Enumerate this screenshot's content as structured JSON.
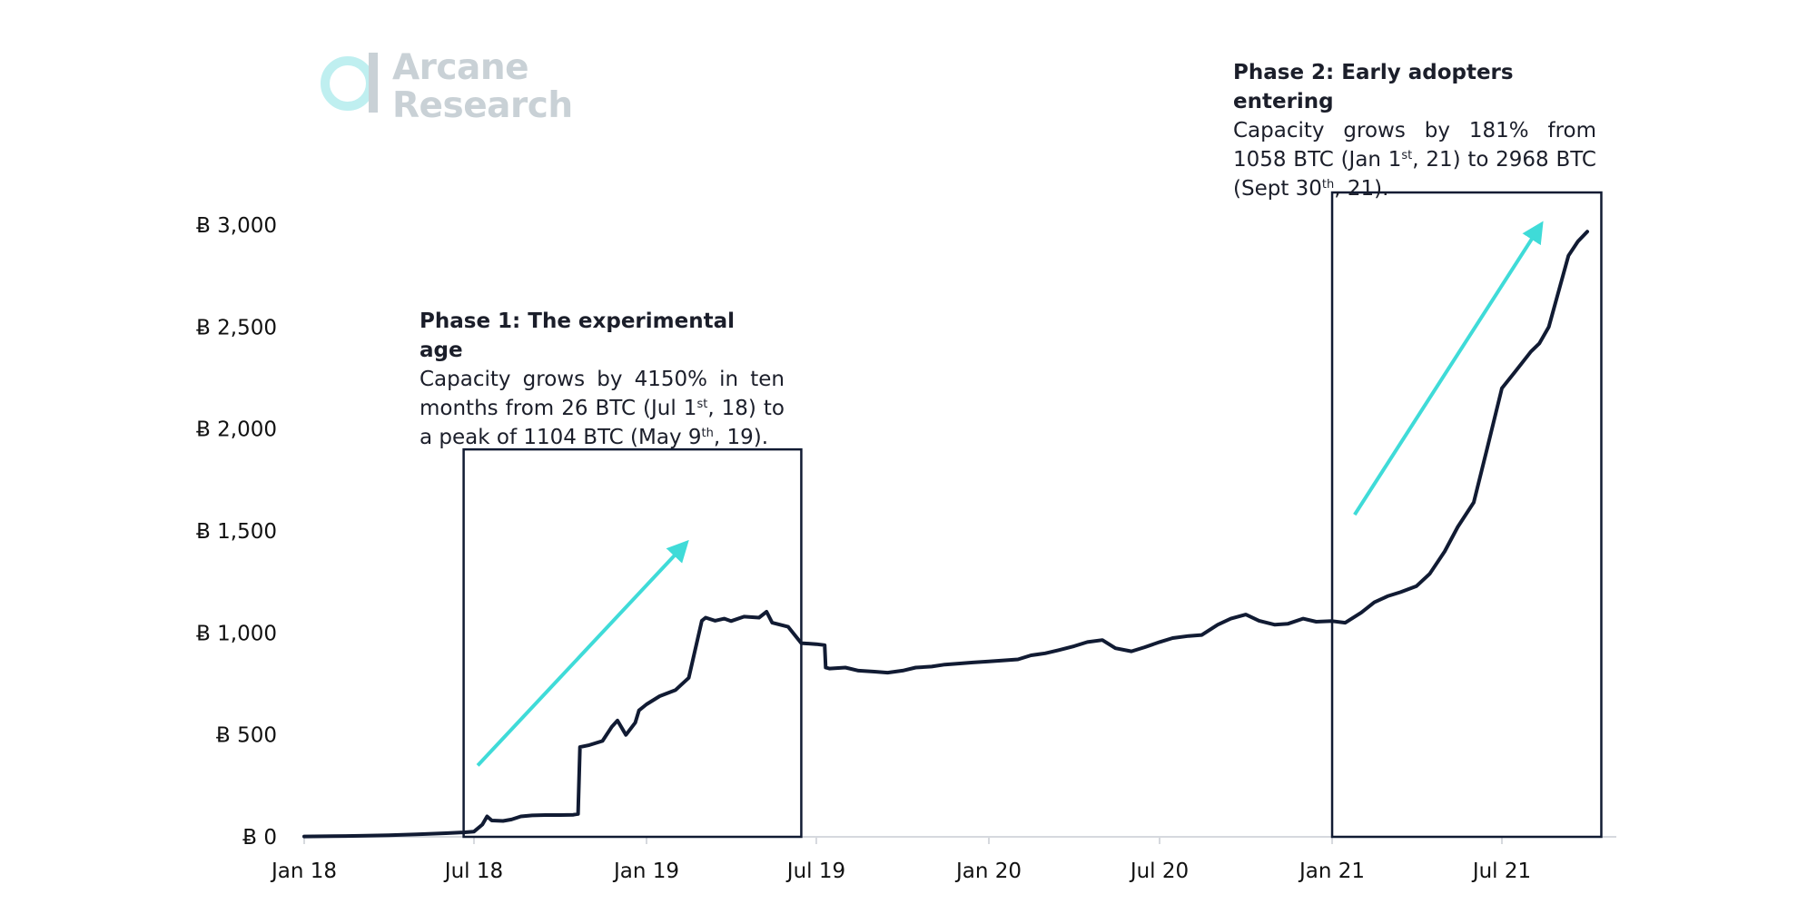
{
  "logo": {
    "line1": "Arcane",
    "line2": "Research"
  },
  "chart_data": {
    "type": "line",
    "title": "",
    "xlabel": "",
    "ylabel": "",
    "ylim": [
      0,
      3000
    ],
    "xlim": [
      "2018-01-01",
      "2021-10-31"
    ],
    "y_ticks": [
      0,
      500,
      1000,
      1500,
      2000,
      2500,
      3000
    ],
    "y_tick_labels": [
      "Ƀ 0",
      "Ƀ 500",
      "Ƀ 1,000",
      "Ƀ 1,500",
      "Ƀ 2,000",
      "Ƀ 2,500",
      "Ƀ 3,000"
    ],
    "x_ticks": [
      "2018-01-01",
      "2018-07-01",
      "2019-01-01",
      "2019-07-01",
      "2020-01-01",
      "2020-07-01",
      "2021-01-01",
      "2021-07-01"
    ],
    "x_tick_labels": [
      "Jan 18",
      "Jul 18",
      "Jan 19",
      "Jul 19",
      "Jan 20",
      "Jul 20",
      "Jan 21",
      "Jul 21"
    ],
    "grid": false,
    "line_color": "#111b33",
    "series": [
      {
        "name": "",
        "x": [
          "2018-01-01",
          "2018-02-01",
          "2018-03-01",
          "2018-04-01",
          "2018-05-01",
          "2018-06-01",
          "2018-06-20",
          "2018-07-01",
          "2018-07-10",
          "2018-07-15",
          "2018-07-20",
          "2018-08-01",
          "2018-08-10",
          "2018-08-20",
          "2018-09-01",
          "2018-09-15",
          "2018-10-01",
          "2018-10-15",
          "2018-10-20",
          "2018-10-22",
          "2018-11-01",
          "2018-11-15",
          "2018-11-25",
          "2018-12-01",
          "2018-12-10",
          "2018-12-20",
          "2018-12-24",
          "2019-01-01",
          "2019-01-15",
          "2019-02-01",
          "2019-02-15",
          "2019-03-01",
          "2019-03-05",
          "2019-03-15",
          "2019-03-25",
          "2019-04-01",
          "2019-04-15",
          "2019-05-01",
          "2019-05-09",
          "2019-05-15",
          "2019-06-01",
          "2019-06-15",
          "2019-07-01",
          "2019-07-10",
          "2019-07-11",
          "2019-07-15",
          "2019-08-01",
          "2019-08-15",
          "2019-09-01",
          "2019-09-15",
          "2019-10-01",
          "2019-10-15",
          "2019-11-01",
          "2019-11-15",
          "2019-12-01",
          "2019-12-15",
          "2020-01-01",
          "2020-01-15",
          "2020-02-01",
          "2020-02-15",
          "2020-03-01",
          "2020-03-15",
          "2020-04-01",
          "2020-04-15",
          "2020-05-01",
          "2020-05-15",
          "2020-06-01",
          "2020-06-15",
          "2020-07-01",
          "2020-07-15",
          "2020-08-01",
          "2020-08-15",
          "2020-09-01",
          "2020-09-15",
          "2020-10-01",
          "2020-10-15",
          "2020-11-01",
          "2020-11-15",
          "2020-12-01",
          "2020-12-15",
          "2021-01-01",
          "2021-01-15",
          "2021-02-01",
          "2021-02-15",
          "2021-03-01",
          "2021-03-15",
          "2021-04-01",
          "2021-04-15",
          "2021-05-01",
          "2021-05-15",
          "2021-06-01",
          "2021-06-15",
          "2021-07-01",
          "2021-07-15",
          "2021-08-01",
          "2021-08-10",
          "2021-08-20",
          "2021-09-01",
          "2021-09-10",
          "2021-09-20",
          "2021-09-30"
        ],
        "y": [
          2,
          3,
          5,
          8,
          12,
          18,
          22,
          26,
          60,
          100,
          80,
          78,
          85,
          100,
          105,
          107,
          107,
          108,
          112,
          440,
          450,
          470,
          540,
          570,
          500,
          560,
          620,
          650,
          690,
          720,
          780,
          1060,
          1075,
          1060,
          1070,
          1058,
          1080,
          1075,
          1104,
          1050,
          1030,
          950,
          945,
          940,
          830,
          825,
          830,
          815,
          810,
          805,
          815,
          830,
          835,
          845,
          850,
          855,
          860,
          865,
          870,
          890,
          900,
          915,
          935,
          955,
          965,
          925,
          910,
          930,
          955,
          975,
          985,
          990,
          1040,
          1070,
          1090,
          1060,
          1040,
          1045,
          1070,
          1055,
          1058,
          1050,
          1100,
          1150,
          1180,
          1200,
          1230,
          1290,
          1400,
          1520,
          1640,
          1900,
          2200,
          2280,
          2380,
          2420,
          2500,
          2700,
          2850,
          2920,
          2968
        ]
      }
    ],
    "annotations": [
      {
        "title": "Phase 1: The experimental age",
        "text": [
          {
            "t": "Capacity grows by 4150% in ten months from 26 BTC (Jul 1"
          },
          {
            "t": "st",
            "sup": true
          },
          {
            "t": ", 18) to a peak of 1104 BTC (May 9"
          },
          {
            "t": "th",
            "sup": true
          },
          {
            "t": ", 19)."
          }
        ],
        "box_x": [
          "2018-06-20",
          "2019-06-15"
        ],
        "box_y": [
          0,
          1900
        ],
        "arrow_from": [
          "2018-07-05",
          350
        ],
        "arrow_to": [
          "2019-02-10",
          1430
        ],
        "arrow_color": "#3fdbd8"
      },
      {
        "title": "Phase 2: Early adopters entering",
        "text": [
          {
            "t": "Capacity grows by 181% from 1058 BTC (Jan 1"
          },
          {
            "t": "st",
            "sup": true
          },
          {
            "t": ", 21) to 2968 BTC (Sept 30"
          },
          {
            "t": "th",
            "sup": true
          },
          {
            "t": ", 21)."
          }
        ],
        "box_x": [
          "2021-01-01",
          "2021-10-15"
        ],
        "box_y": [
          0,
          3160
        ],
        "arrow_from": [
          "2021-01-25",
          1580
        ],
        "arrow_to": [
          "2021-08-10",
          2990
        ],
        "arrow_color": "#3fdbd8"
      }
    ]
  }
}
